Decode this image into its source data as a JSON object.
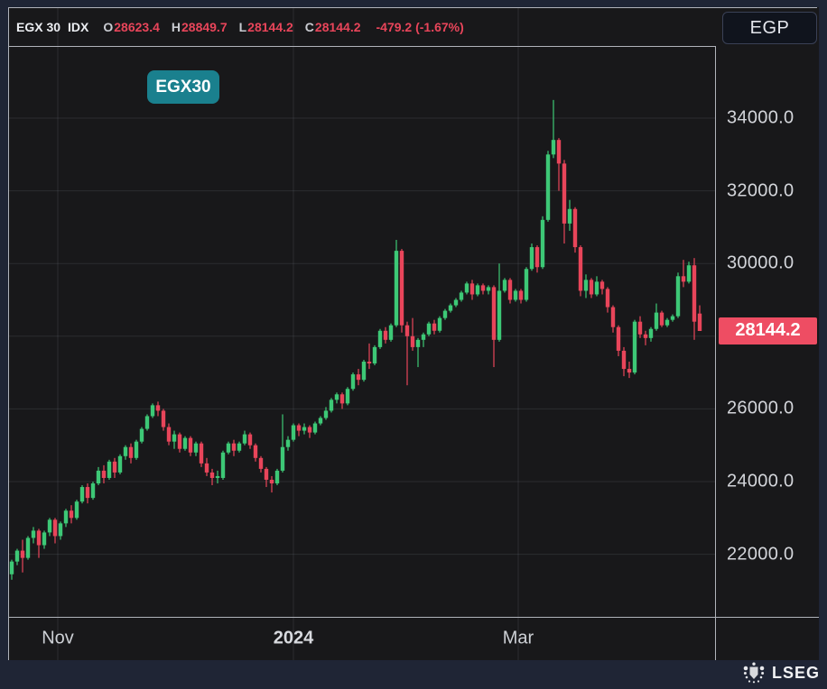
{
  "header": {
    "symbol": "EGX 30",
    "suffix": "IDX",
    "ohlc": {
      "open_label": "O",
      "open": "28623.4",
      "high_label": "H",
      "high": "28849.7",
      "low_label": "L",
      "low": "28144.2",
      "close_label": "C",
      "close": "28144.2"
    },
    "change": "-479.2 (-1.67%)",
    "currency": "EGP"
  },
  "legend_chip": {
    "label": "EGX30"
  },
  "price_axis": {
    "last_price_label": "28144.2"
  },
  "footer": {
    "brand": "LSEG",
    "crest_icon": "lseg-crest"
  },
  "colors": {
    "page_bg": "#1f2535",
    "panel_bg": "#18181a",
    "frame": "#b0b3ba",
    "grid": "rgba(145,150,165,0.16)",
    "up": "#3dc876",
    "down": "#e8455a",
    "last_price_badge_bg": "#ee4d63",
    "chip_teal": "#1a808e"
  },
  "chart_data": {
    "type": "candlestick",
    "title": "EGX 30 IDX",
    "currency": "EGP",
    "last_price": 28144.2,
    "ylim": [
      20300,
      36000
    ],
    "grid": true,
    "y_gridlines": [
      22000,
      24000,
      26000,
      28000,
      30000,
      32000,
      34000
    ],
    "y_tick_labels": [
      34000,
      32000,
      30000,
      26000,
      24000,
      22000
    ],
    "x_ticks": [
      {
        "label": "Nov",
        "i": 8.5,
        "bold": false
      },
      {
        "label": "2024",
        "i": 52,
        "bold": true
      },
      {
        "label": "Mar",
        "i": 93.5,
        "bold": false
      }
    ],
    "candles": [
      [
        21450,
        21850,
        21300,
        21800
      ],
      [
        21800,
        22150,
        21700,
        22100
      ],
      [
        22100,
        22400,
        21500,
        21900
      ],
      [
        21900,
        22500,
        21850,
        22450
      ],
      [
        22450,
        22750,
        22300,
        22650
      ],
      [
        22650,
        22700,
        21900,
        22250
      ],
      [
        22250,
        22650,
        22150,
        22600
      ],
      [
        22600,
        23000,
        22500,
        22950
      ],
      [
        22950,
        23000,
        22300,
        22500
      ],
      [
        22500,
        22900,
        22400,
        22850
      ],
      [
        22850,
        23250,
        22750,
        23200
      ],
      [
        23200,
        23350,
        22850,
        23000
      ],
      [
        23000,
        23500,
        22950,
        23450
      ],
      [
        23450,
        23900,
        23400,
        23850
      ],
      [
        23850,
        23950,
        23400,
        23550
      ],
      [
        23550,
        24000,
        23500,
        23950
      ],
      [
        23950,
        24400,
        23900,
        24300
      ],
      [
        24300,
        24450,
        23950,
        24100
      ],
      [
        24100,
        24600,
        24050,
        24550
      ],
      [
        24550,
        24650,
        24100,
        24250
      ],
      [
        24250,
        24750,
        24200,
        24700
      ],
      [
        24700,
        25000,
        24600,
        24950
      ],
      [
        24950,
        25050,
        24500,
        24650
      ],
      [
        24650,
        25150,
        24600,
        25100
      ],
      [
        25100,
        25500,
        25050,
        25450
      ],
      [
        25450,
        25850,
        25400,
        25800
      ],
      [
        25800,
        26150,
        25750,
        26100
      ],
      [
        26100,
        26200,
        25800,
        25950
      ],
      [
        25950,
        26000,
        25400,
        25500
      ],
      [
        25500,
        25600,
        25000,
        25100
      ],
      [
        25100,
        25400,
        24900,
        25300
      ],
      [
        25300,
        25350,
        24800,
        24900
      ],
      [
        24900,
        25250,
        24850,
        25200
      ],
      [
        25200,
        25250,
        24700,
        24800
      ],
      [
        24800,
        25100,
        24700,
        25050
      ],
      [
        25050,
        25100,
        24400,
        24500
      ],
      [
        24500,
        24650,
        24150,
        24250
      ],
      [
        24250,
        24350,
        23900,
        24100
      ],
      [
        24100,
        24300,
        23950,
        24150
      ],
      [
        24100,
        24850,
        24050,
        24800
      ],
      [
        24800,
        25100,
        24750,
        25050
      ],
      [
        25050,
        25150,
        24700,
        24850
      ],
      [
        24850,
        25100,
        24800,
        25050
      ],
      [
        25050,
        25400,
        25000,
        25300
      ],
      [
        25300,
        25350,
        24900,
        25000
      ],
      [
        25000,
        25050,
        24550,
        24650
      ],
      [
        24650,
        24700,
        24250,
        24350
      ],
      [
        24350,
        24400,
        23850,
        24050
      ],
      [
        24050,
        24150,
        23700,
        23950
      ],
      [
        23950,
        24350,
        23900,
        24300
      ],
      [
        24300,
        25850,
        24250,
        24950
      ],
      [
        24950,
        25250,
        24850,
        25150
      ],
      [
        25150,
        25600,
        25100,
        25550
      ],
      [
        25550,
        25600,
        25250,
        25400
      ],
      [
        25400,
        25600,
        25300,
        25500
      ],
      [
        25500,
        25550,
        25200,
        25350
      ],
      [
        25350,
        25650,
        25300,
        25600
      ],
      [
        25600,
        25800,
        25550,
        25750
      ],
      [
        25750,
        26050,
        25700,
        25950
      ],
      [
        25950,
        26300,
        25900,
        26250
      ],
      [
        26250,
        26450,
        26150,
        26400
      ],
      [
        26400,
        26450,
        26000,
        26150
      ],
      [
        26150,
        26600,
        26100,
        26550
      ],
      [
        26550,
        27000,
        26500,
        26950
      ],
      [
        26950,
        27100,
        26650,
        26800
      ],
      [
        26800,
        27350,
        26750,
        27300
      ],
      [
        27300,
        27800,
        27100,
        27250
      ],
      [
        27250,
        27750,
        27200,
        27700
      ],
      [
        27700,
        28200,
        27650,
        28150
      ],
      [
        28150,
        28250,
        27800,
        27900
      ],
      [
        27900,
        28350,
        27850,
        28300
      ],
      [
        28300,
        30650,
        28250,
        30350
      ],
      [
        30350,
        30400,
        28100,
        28300
      ],
      [
        28300,
        28400,
        26650,
        28000
      ],
      [
        28000,
        28500,
        27600,
        27700
      ],
      [
        27700,
        27950,
        27150,
        27900
      ],
      [
        27900,
        28100,
        27700,
        28050
      ],
      [
        28050,
        28400,
        28000,
        28350
      ],
      [
        28350,
        28450,
        28050,
        28150
      ],
      [
        28150,
        28550,
        28100,
        28500
      ],
      [
        28500,
        28750,
        28450,
        28700
      ],
      [
        28700,
        28900,
        28650,
        28850
      ],
      [
        28850,
        29050,
        28800,
        29000
      ],
      [
        29000,
        29250,
        28950,
        29200
      ],
      [
        29200,
        29500,
        29150,
        29450
      ],
      [
        29450,
        29550,
        29000,
        29150
      ],
      [
        29150,
        29450,
        29100,
        29400
      ],
      [
        29400,
        29450,
        29150,
        29250
      ],
      [
        29250,
        29400,
        29150,
        29350
      ],
      [
        29350,
        29400,
        27150,
        27900
      ],
      [
        27900,
        30000,
        27850,
        29250
      ],
      [
        29250,
        29600,
        29200,
        29550
      ],
      [
        29550,
        29600,
        28900,
        29000
      ],
      [
        29000,
        29300,
        28950,
        29250
      ],
      [
        29250,
        29300,
        28900,
        29000
      ],
      [
        29000,
        29900,
        28950,
        29850
      ],
      [
        29850,
        30550,
        29800,
        30450
      ],
      [
        30450,
        30500,
        29750,
        29900
      ],
      [
        29900,
        31300,
        29850,
        31200
      ],
      [
        31200,
        33100,
        31150,
        33000
      ],
      [
        33000,
        34500,
        32900,
        33400
      ],
      [
        33400,
        33450,
        32000,
        32750
      ],
      [
        32750,
        32850,
        30550,
        31100
      ],
      [
        31100,
        31750,
        30900,
        31500
      ],
      [
        31500,
        31550,
        30300,
        30450
      ],
      [
        30450,
        30500,
        29100,
        29250
      ],
      [
        29250,
        29700,
        29050,
        29550
      ],
      [
        29550,
        29600,
        29050,
        29150
      ],
      [
        29150,
        29650,
        29100,
        29500
      ],
      [
        29500,
        29550,
        29150,
        29300
      ],
      [
        29300,
        29350,
        28650,
        28800
      ],
      [
        28800,
        28850,
        28100,
        28250
      ],
      [
        28250,
        28300,
        27450,
        27600
      ],
      [
        27600,
        27700,
        26900,
        27100
      ],
      [
        27100,
        27300,
        26850,
        27000
      ],
      [
        27000,
        28450,
        26950,
        28400
      ],
      [
        28400,
        28550,
        27950,
        28050
      ],
      [
        28050,
        28150,
        27750,
        27950
      ],
      [
        27950,
        28250,
        27850,
        28200
      ],
      [
        28200,
        28900,
        28150,
        28650
      ],
      [
        28650,
        28700,
        28250,
        28300
      ],
      [
        28300,
        28500,
        28250,
        28450
      ],
      [
        28450,
        28600,
        28400,
        28550
      ],
      [
        28550,
        29750,
        28500,
        29650
      ],
      [
        29650,
        30100,
        29350,
        29500
      ],
      [
        29500,
        30050,
        29450,
        29950
      ],
      [
        29950,
        30150,
        27900,
        28400
      ],
      [
        28623.4,
        28849.7,
        28144.2,
        28144.2
      ]
    ]
  }
}
